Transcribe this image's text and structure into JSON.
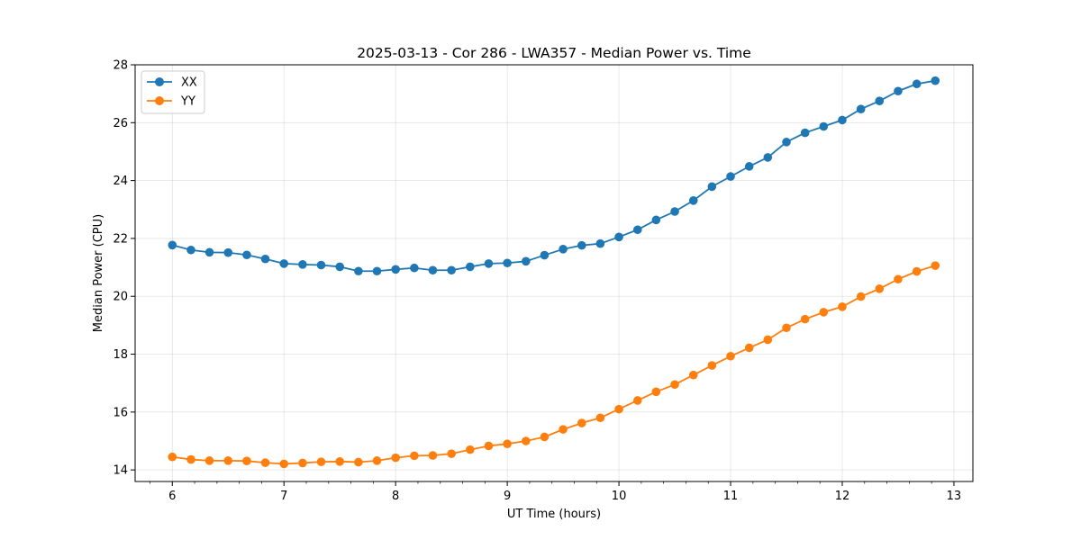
{
  "chart_data": {
    "type": "line",
    "title": "2025-03-13 - Cor 286 - LWA357 - Median Power vs. Time",
    "xlabel": "UT Time (hours)",
    "ylabel": "Median Power (CPU)",
    "xlim": [
      5.667,
      13.17
    ],
    "ylim": [
      13.6,
      28.0
    ],
    "xticks": [
      6,
      7,
      8,
      9,
      10,
      11,
      12,
      13
    ],
    "yticks": [
      14,
      16,
      18,
      20,
      22,
      24,
      26,
      28
    ],
    "x_minor_step": 0.2,
    "grid": true,
    "legend_loc": "upper-left",
    "x": [
      6.0,
      6.167,
      6.333,
      6.5,
      6.667,
      6.833,
      7.0,
      7.167,
      7.333,
      7.5,
      7.667,
      7.833,
      8.0,
      8.167,
      8.333,
      8.5,
      8.667,
      8.833,
      9.0,
      9.167,
      9.333,
      9.5,
      9.667,
      9.833,
      10.0,
      10.167,
      10.333,
      10.5,
      10.667,
      10.833,
      11.0,
      11.167,
      11.333,
      11.5,
      11.667,
      11.833,
      12.0,
      12.167,
      12.333,
      12.5,
      12.667,
      12.833
    ],
    "series": [
      {
        "name": "XX",
        "color": "#1f77b4",
        "values": [
          21.77,
          21.6,
          21.52,
          21.51,
          21.43,
          21.29,
          21.13,
          21.1,
          21.08,
          21.02,
          20.87,
          20.87,
          20.93,
          20.98,
          20.9,
          20.9,
          21.02,
          21.13,
          21.15,
          21.21,
          21.42,
          21.63,
          21.76,
          21.82,
          22.05,
          22.3,
          22.64,
          22.93,
          23.31,
          23.79,
          24.14,
          24.49,
          24.8,
          25.33,
          25.65,
          25.87,
          26.09,
          26.47,
          26.75,
          27.09,
          27.34,
          27.45
        ]
      },
      {
        "name": "YY",
        "color": "#ff7f0e",
        "values": [
          14.45,
          14.36,
          14.32,
          14.32,
          14.31,
          14.25,
          14.21,
          14.24,
          14.28,
          14.29,
          14.27,
          14.32,
          14.42,
          14.49,
          14.5,
          14.56,
          14.7,
          14.83,
          14.9,
          15.0,
          15.14,
          15.4,
          15.62,
          15.8,
          16.1,
          16.4,
          16.7,
          16.95,
          17.28,
          17.61,
          17.93,
          18.22,
          18.5,
          18.91,
          19.21,
          19.45,
          19.64,
          19.99,
          20.26,
          20.59,
          20.86,
          21.06
        ]
      }
    ]
  }
}
